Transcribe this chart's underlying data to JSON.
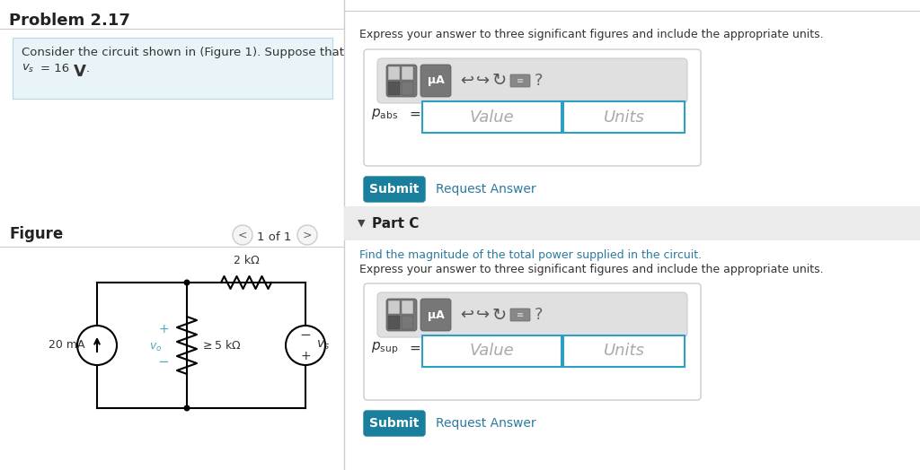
{
  "title": "Problem 2.17",
  "bg_color": "#ffffff",
  "problem_text_line1": "Consider the circuit shown in (Figure 1). Suppose that",
  "problem_text_line2": "vₛ = 16  V .",
  "figure_label": "Figure",
  "page_indicator": "1 of 1",
  "express_text": "Express your answer to three significant figures and include the appropriate units.",
  "part_c_label": "Part C",
  "find_text": "Find the magnitude of the total power supplied in the circuit.",
  "value_placeholder": "Value",
  "units_placeholder": "Units",
  "submit_text": "Submit",
  "request_answer_text": "Request Answer",
  "teal_color": "#2b7a9e",
  "teal_button": "#1a7f9c",
  "light_blue_bg": "#e8f4f8",
  "light_blue_border": "#b8d8e8",
  "part_c_bg": "#ebebeb",
  "toolbar_bg": "#c8c8c8",
  "toolbar_icon_bg": "#888888",
  "input_border": "#2e9ec4",
  "box_border": "#cccccc",
  "divider_color": "#cccccc",
  "circuit_color": "#000000",
  "vo_color": "#4da6c8",
  "text_color": "#333333"
}
